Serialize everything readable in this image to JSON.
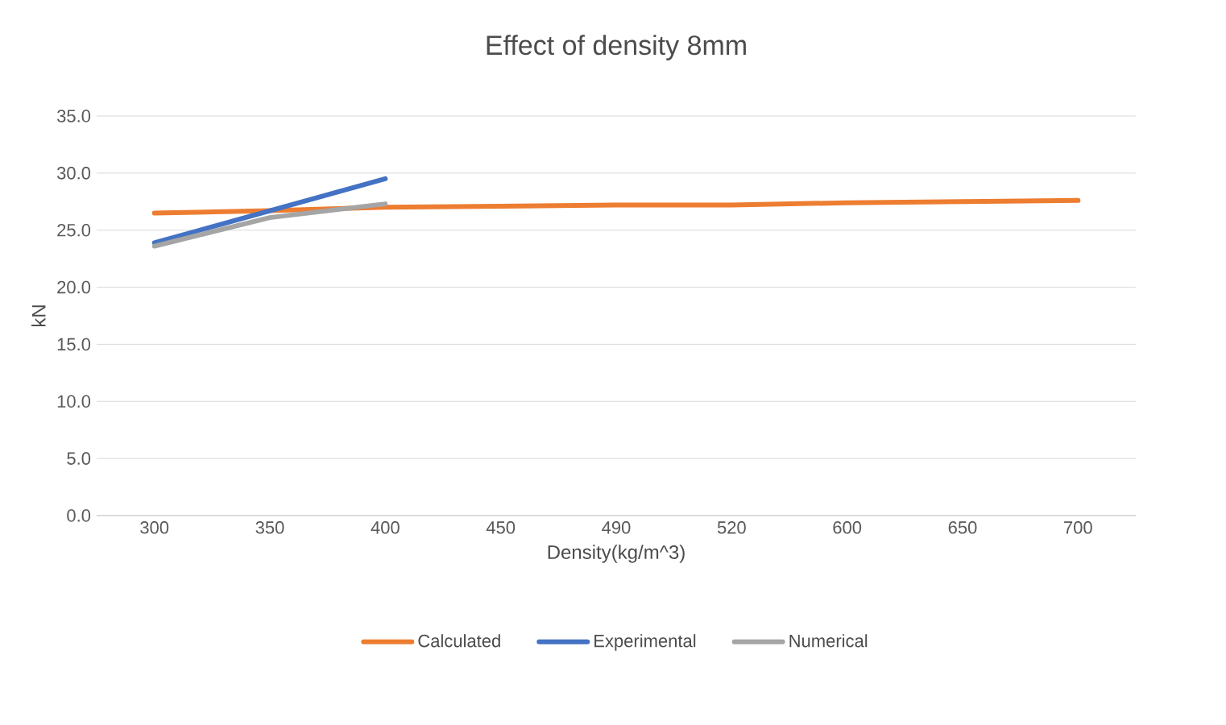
{
  "chart_data": {
    "type": "line",
    "title": "Effect of density 8mm",
    "xlabel": "Density(kg/m^3)",
    "ylabel": "kN",
    "categories": [
      "300",
      "350",
      "400",
      "450",
      "490",
      "520",
      "600",
      "650",
      "700"
    ],
    "series": [
      {
        "name": "Calculated",
        "color": "#ed7d31",
        "values": [
          26.5,
          26.7,
          27.0,
          27.1,
          27.2,
          27.2,
          27.4,
          27.5,
          27.6
        ]
      },
      {
        "name": "Experimental",
        "color": "#4472c4",
        "values": [
          23.9,
          26.7,
          29.5,
          null,
          null,
          null,
          null,
          null,
          null
        ]
      },
      {
        "name": "Numerical",
        "color": "#a5a5a5",
        "values": [
          23.6,
          26.1,
          27.3,
          null,
          null,
          null,
          null,
          null,
          null
        ]
      }
    ],
    "ylim": [
      0,
      35
    ],
    "yticks": [
      {
        "value": 0,
        "label": "0.0"
      },
      {
        "value": 5,
        "label": "5.0"
      },
      {
        "value": 10,
        "label": "10.0"
      },
      {
        "value": 15,
        "label": "15.0"
      },
      {
        "value": 20,
        "label": "20.0"
      },
      {
        "value": 25,
        "label": "25.0"
      },
      {
        "value": 30,
        "label": "30.0"
      },
      {
        "value": 35,
        "label": "35.0"
      }
    ],
    "grid": "y",
    "legend": "bottom",
    "marker": "none",
    "line_style": "solid"
  }
}
